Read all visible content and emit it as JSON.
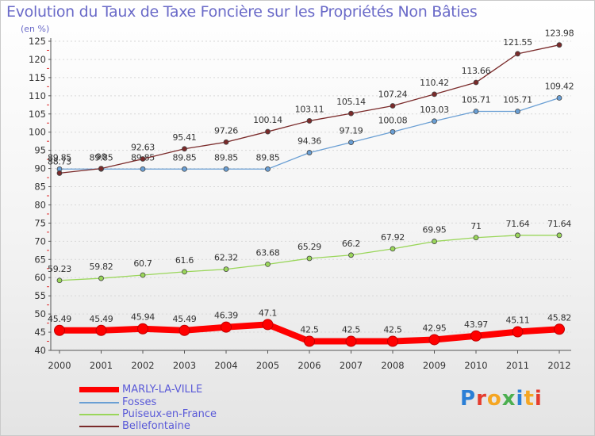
{
  "title": "Evolution du Taux de Taxe Foncière sur les Propriétés Non Bâties",
  "unit": "(en %)",
  "logo": "Proxiti",
  "chart_data": {
    "type": "line",
    "title": "Evolution du Taux de Taxe Foncière sur les Propriétés Non Bâties",
    "ylabel": "(en %)",
    "xlabel": "",
    "ylim": [
      40,
      125
    ],
    "yticks": [
      40,
      45,
      50,
      55,
      60,
      65,
      70,
      75,
      80,
      85,
      90,
      95,
      100,
      105,
      110,
      115,
      120,
      125
    ],
    "categories": [
      "2000",
      "2001",
      "2002",
      "2003",
      "2004",
      "2005",
      "2006",
      "2007",
      "2008",
      "2009",
      "2010",
      "2011",
      "2012"
    ],
    "series": [
      {
        "name": "MARLY-LA-VILLE",
        "color": "#ff0000",
        "values": [
          45.49,
          45.49,
          45.94,
          45.49,
          46.39,
          47.1,
          42.5,
          42.5,
          42.5,
          42.95,
          43.97,
          45.11,
          45.82
        ],
        "labels": [
          "45.49",
          "45.49",
          "45.94",
          "45.49",
          "46.39",
          "47.1",
          "42.5",
          "42.5",
          "42.5",
          "42.95",
          "43.97",
          "45.11",
          "45.82"
        ]
      },
      {
        "name": "Fosses",
        "color": "#6a9fd4",
        "values": [
          89.85,
          89.85,
          89.85,
          89.85,
          89.85,
          89.85,
          94.36,
          97.19,
          100.08,
          103.03,
          105.71,
          105.71,
          109.42
        ],
        "labels": [
          "89.85",
          "89.85",
          "89.85",
          "89.85",
          "89.85",
          "89.85",
          "94.36",
          "97.19",
          "100.08",
          "103.03",
          "105.71",
          "105.71",
          "109.42"
        ]
      },
      {
        "name": "Puiseux-en-France",
        "color": "#9ad65a",
        "values": [
          59.23,
          59.82,
          60.7,
          61.6,
          62.32,
          63.68,
          65.29,
          66.2,
          67.92,
          69.95,
          71,
          71.64,
          71.64
        ],
        "labels": [
          "59.23",
          "59.82",
          "60.7",
          "61.6",
          "62.32",
          "63.68",
          "65.29",
          "66.2",
          "67.92",
          "69.95",
          "71",
          "71.64",
          "71.64"
        ]
      },
      {
        "name": "Bellefontaine",
        "color": "#7a2a2a",
        "values": [
          88.73,
          90,
          92.63,
          95.41,
          97.26,
          100.14,
          103.11,
          105.14,
          107.24,
          110.42,
          113.66,
          121.55,
          123.98
        ],
        "labels": [
          "88.73",
          "90",
          "92.63",
          "95.41",
          "97.26",
          "100.14",
          "103.11",
          "105.14",
          "107.24",
          "110.42",
          "113.66",
          "121.55",
          "123.98"
        ]
      }
    ]
  }
}
